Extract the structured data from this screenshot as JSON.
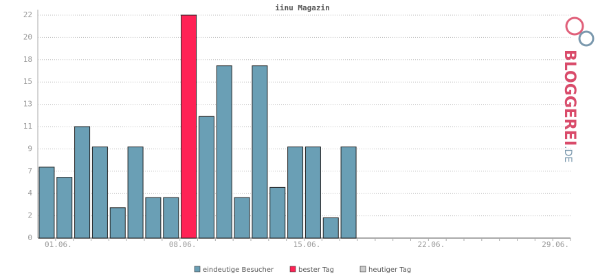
{
  "chart_data": {
    "type": "bar",
    "title": "iinu Magazin",
    "categories": [
      "01.06.",
      null,
      null,
      null,
      null,
      null,
      null,
      "08.06.",
      null,
      null,
      null,
      null,
      null,
      null,
      "15.06.",
      null,
      null,
      null,
      null,
      null,
      null,
      "22.06.",
      null,
      null,
      null,
      null,
      null,
      null,
      "29.06.",
      null
    ],
    "values": [
      7,
      6,
      11,
      9,
      3,
      9,
      4,
      4,
      22,
      12,
      17,
      4,
      17,
      5,
      9,
      9,
      2,
      9,
      null,
      null,
      null,
      null,
      null,
      null,
      null,
      null,
      null,
      null,
      null,
      null
    ],
    "colors": [
      "#6a9fb5",
      "#6a9fb5",
      "#6a9fb5",
      "#6a9fb5",
      "#6a9fb5",
      "#6a9fb5",
      "#6a9fb5",
      "#6a9fb5",
      "#ff2255",
      "#6a9fb5",
      "#6a9fb5",
      "#6a9fb5",
      "#6a9fb5",
      "#6a9fb5",
      "#6a9fb5",
      "#6a9fb5",
      "#6a9fb5",
      "#6a9fb5",
      null,
      null,
      null,
      null,
      null,
      null,
      null,
      null,
      null,
      null,
      null,
      null
    ],
    "ylim": [
      0,
      22
    ],
    "yticks": [
      0,
      {
        "value": 2.2,
        "label": "2"
      },
      {
        "value": 4.4,
        "label": "4"
      },
      {
        "value": 6.6,
        "label": "7"
      },
      {
        "value": 8.8,
        "label": "9"
      },
      11,
      {
        "value": 13.2,
        "label": "13"
      },
      {
        "value": 15.4,
        "label": "15"
      },
      {
        "value": 17.6,
        "label": "18"
      },
      {
        "value": 19.8,
        "label": "20"
      },
      22
    ],
    "grid": true,
    "legend": [
      {
        "name": "eindeutige Besucher",
        "color": "#6a9fb5"
      },
      {
        "name": "bester Tag",
        "color": "#ff2255"
      },
      {
        "name": "heutiger Tag",
        "color": "#cccccc"
      }
    ]
  },
  "logo": {
    "main": "BLOGGEREI",
    "suffix": ".DE"
  }
}
